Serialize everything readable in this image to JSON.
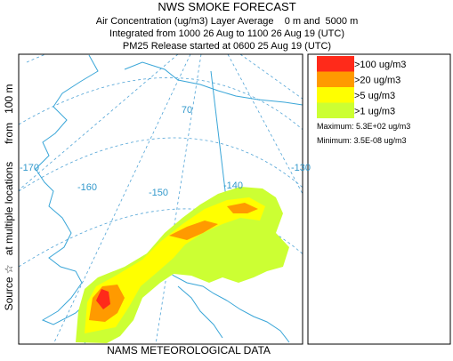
{
  "header": {
    "title": "NWS SMOKE FORECAST",
    "lines": [
      "Air Concentration (ug/m3) Layer Average    0 m and  5000 m",
      "Integrated from 1000 26 Aug to 1100 26 Aug 19 (UTC)",
      "PM25 Release started at 0600 25 Aug 19 (UTC)"
    ]
  },
  "side_label": "Source ☆   at multiple locations      from   100 m",
  "footer": "NAMS METEOROLOGICAL DATA",
  "legend": {
    "items": [
      {
        "label": ">100 ug/m3",
        "color": "#ff2a1a"
      },
      {
        "label": ">20 ug/m3",
        "color": "#ff9a00"
      },
      {
        "label": ">5 ug/m3",
        "color": "#ffff00"
      },
      {
        "label": ">1 ug/m3",
        "color": "#ccff33"
      }
    ],
    "maximum": "Maximum: 5.3E+02 ug/m3",
    "minimum": "Minimum: 3.5E-08 ug/m3"
  },
  "map": {
    "labels": [
      "-170",
      "-160",
      "-150",
      "-140",
      "-130",
      "70"
    ]
  }
}
